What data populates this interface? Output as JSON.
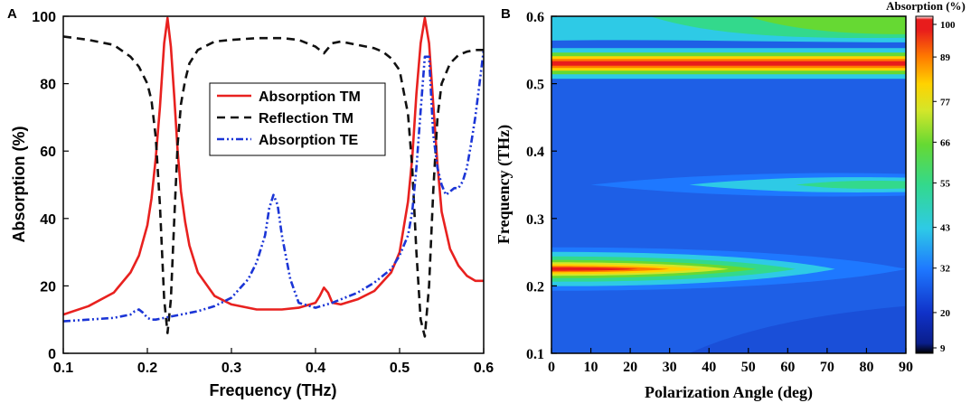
{
  "chart_data": [
    {
      "type": "line",
      "panel_label": "A",
      "xlabel": "Frequency (THz)",
      "ylabel": "Absorption (%)",
      "xlim": [
        0.1,
        0.6
      ],
      "ylim": [
        0,
        100
      ],
      "xticks": [
        "0.1",
        "0.2",
        "0.3",
        "0.4",
        "0.5",
        "0.6"
      ],
      "yticks": [
        "0",
        "20",
        "40",
        "60",
        "80",
        "100"
      ],
      "legend_position": "center-right",
      "series": [
        {
          "name": "Absorption TM",
          "color": "#e8211f",
          "style": "solid",
          "x": [
            0.1,
            0.13,
            0.16,
            0.18,
            0.19,
            0.2,
            0.205,
            0.21,
            0.215,
            0.22,
            0.224,
            0.228,
            0.232,
            0.236,
            0.24,
            0.245,
            0.25,
            0.26,
            0.28,
            0.3,
            0.33,
            0.36,
            0.38,
            0.4,
            0.405,
            0.41,
            0.415,
            0.42,
            0.43,
            0.45,
            0.47,
            0.49,
            0.5,
            0.51,
            0.515,
            0.52,
            0.525,
            0.53,
            0.535,
            0.54,
            0.545,
            0.55,
            0.56,
            0.57,
            0.58,
            0.59,
            0.6
          ],
          "y": [
            11.5,
            14,
            18,
            24,
            29,
            38,
            46,
            58,
            73,
            92,
            99.5,
            91,
            76,
            60,
            48,
            39,
            32,
            24,
            17,
            14.5,
            13,
            13,
            13.5,
            15,
            17,
            19.5,
            18,
            15,
            14.5,
            16,
            18.5,
            24,
            30,
            45,
            58,
            77,
            92,
            99.5,
            92,
            74,
            56,
            42,
            31,
            26,
            23,
            21.5,
            21.5
          ]
        },
        {
          "name": "Reflection TM",
          "color": "#111111",
          "style": "dashed",
          "x": [
            0.1,
            0.13,
            0.16,
            0.18,
            0.19,
            0.2,
            0.205,
            0.21,
            0.215,
            0.22,
            0.224,
            0.228,
            0.232,
            0.236,
            0.24,
            0.245,
            0.25,
            0.26,
            0.28,
            0.3,
            0.33,
            0.36,
            0.38,
            0.4,
            0.41,
            0.42,
            0.43,
            0.45,
            0.47,
            0.48,
            0.49,
            0.5,
            0.51,
            0.515,
            0.52,
            0.525,
            0.53,
            0.535,
            0.54,
            0.545,
            0.55,
            0.56,
            0.57,
            0.58,
            0.59,
            0.6
          ],
          "y": [
            94,
            93,
            91.5,
            88,
            85,
            80,
            75,
            64,
            44,
            16,
            6,
            16,
            40,
            62,
            74,
            81,
            86,
            90,
            92.5,
            93,
            93.5,
            93.5,
            93,
            91,
            89,
            92,
            92.5,
            91.5,
            90.5,
            89.5,
            87.5,
            84,
            71,
            55,
            30,
            10,
            5,
            20,
            48,
            70,
            80,
            86,
            88.5,
            89.5,
            90,
            90
          ]
        },
        {
          "name": "Absorption TE",
          "color": "#1b35d6",
          "style": "dashdotdot",
          "x": [
            0.1,
            0.13,
            0.16,
            0.18,
            0.185,
            0.19,
            0.195,
            0.2,
            0.205,
            0.21,
            0.22,
            0.24,
            0.26,
            0.28,
            0.3,
            0.32,
            0.33,
            0.34,
            0.345,
            0.35,
            0.355,
            0.36,
            0.37,
            0.38,
            0.4,
            0.42,
            0.45,
            0.47,
            0.49,
            0.5,
            0.51,
            0.515,
            0.52,
            0.525,
            0.53,
            0.535,
            0.54,
            0.545,
            0.55,
            0.555,
            0.56,
            0.565,
            0.57,
            0.575,
            0.58,
            0.585,
            0.59,
            0.595,
            0.6
          ],
          "y": [
            9.5,
            10,
            10.5,
            11.5,
            12.5,
            13,
            12,
            10.5,
            10,
            10,
            10.5,
            11.5,
            12.5,
            14,
            16.5,
            22,
            27,
            35,
            43,
            47,
            44,
            35,
            22,
            15,
            13.5,
            15,
            18,
            21,
            25,
            29,
            35,
            42,
            55,
            72,
            88,
            88,
            65,
            55,
            50,
            47,
            48,
            49,
            49,
            51,
            55,
            62,
            70,
            80,
            90
          ]
        }
      ]
    },
    {
      "type": "heatmap",
      "panel_label": "B",
      "xlabel": "Polarization Angle (deg)",
      "ylabel": "Frequency (THz)",
      "xlim": [
        0,
        90
      ],
      "ylim": [
        0.1,
        0.6
      ],
      "xticks": [
        "0",
        "10",
        "20",
        "30",
        "40",
        "50",
        "60",
        "70",
        "80",
        "90"
      ],
      "yticks": [
        "0.1",
        "0.2",
        "0.3",
        "0.4",
        "0.5",
        "0.6"
      ],
      "colorbar_title": "Absorption (%)",
      "colorbar_range": [
        9,
        100
      ],
      "colorbar_ticks": [
        "9",
        "20",
        "32",
        "43",
        "55",
        "66",
        "77",
        "89",
        "100"
      ],
      "colormap": [
        "#000000",
        "#1032c8",
        "#1e78ff",
        "#2ecae6",
        "#33d98c",
        "#66d933",
        "#d3e62a",
        "#ffd200",
        "#ff7a00",
        "#e81c1c",
        "#ffffff"
      ],
      "features": [
        {
          "name": "TM resonance",
          "frequency": 0.53,
          "value_range": [
            100,
            100
          ],
          "note": "constant across angles"
        },
        {
          "name": "TM resonance",
          "frequency": 0.225,
          "value_at_0deg": 100,
          "value_at_90deg": 10
        },
        {
          "name": "TE resonance",
          "frequency": 0.35,
          "value_at_0deg": 13,
          "value_at_90deg": 45
        },
        {
          "name": "TE background",
          "frequency": 0.58,
          "value_at_0deg": 30,
          "value_at_90deg": 60
        }
      ]
    }
  ]
}
